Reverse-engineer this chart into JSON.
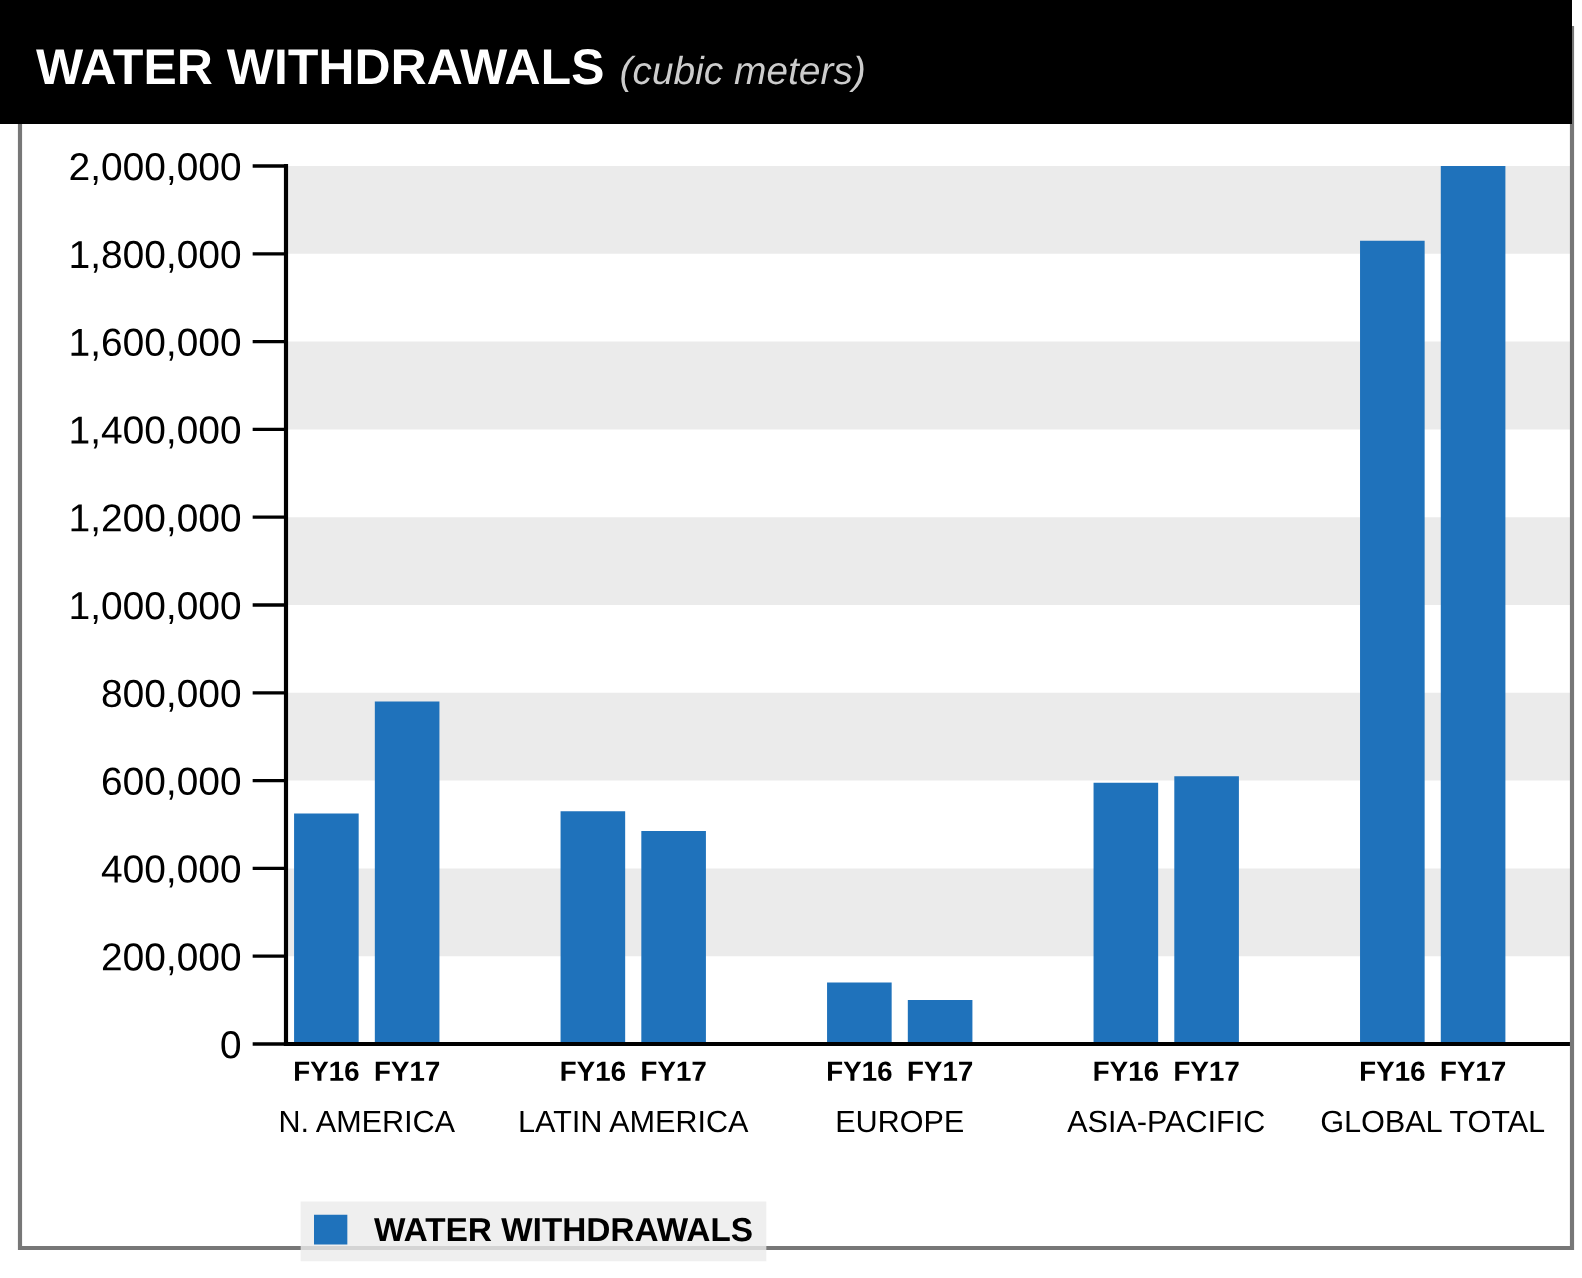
{
  "chart_data": {
    "type": "bar",
    "title": "WATER WITHDRAWALS",
    "subtitle": "(cubic meters)",
    "categories": [
      "FY16",
      "FY17",
      "FY16",
      "FY17",
      "FY16",
      "FY17",
      "FY16",
      "FY17",
      "FY16",
      "FY17"
    ],
    "annotations": [
      "N. AMERICA",
      "LATIN AMERICA",
      "EUROPE",
      "ASIA-PACIFIC",
      "GLOBAL TOTAL"
    ],
    "series": [
      {
        "name": "WATER WITHDRAWALS",
        "color": "#1f72bb",
        "values": [
          525000,
          780000,
          530000,
          485000,
          140000,
          100000,
          595000,
          610000,
          1830000,
          2000000
        ]
      }
    ],
    "ylim": [
      0,
      2000000
    ],
    "yticks": [
      {
        "value": 0,
        "label": "0"
      },
      {
        "value": 200000,
        "label": "200,000"
      },
      {
        "value": 400000,
        "label": "400,000"
      },
      {
        "value": 600000,
        "label": "600,000"
      },
      {
        "value": 800000,
        "label": "800,000"
      },
      {
        "value": 1000000,
        "label": "1,000,000"
      },
      {
        "value": 1200000,
        "label": "1,200,000"
      },
      {
        "value": 1400000,
        "label": "1,400,000"
      },
      {
        "value": 1600000,
        "label": "1,600,000"
      },
      {
        "value": 1800000,
        "label": "1,800,000"
      },
      {
        "value": 2000000,
        "label": "2,000,000"
      }
    ],
    "bands": [
      {
        "axis": "y",
        "from": 200000,
        "to": 400000,
        "color": "#ebebeb"
      },
      {
        "axis": "y",
        "from": 600000,
        "to": 800000,
        "color": "#ebebeb"
      },
      {
        "axis": "y",
        "from": 1000000,
        "to": 1200000,
        "color": "#ebebeb"
      },
      {
        "axis": "y",
        "from": 1400000,
        "to": 1600000,
        "color": "#ebebeb"
      },
      {
        "axis": "y",
        "from": 1800000,
        "to": 2000000,
        "color": "#ebebeb"
      }
    ],
    "legend": "bottom"
  }
}
